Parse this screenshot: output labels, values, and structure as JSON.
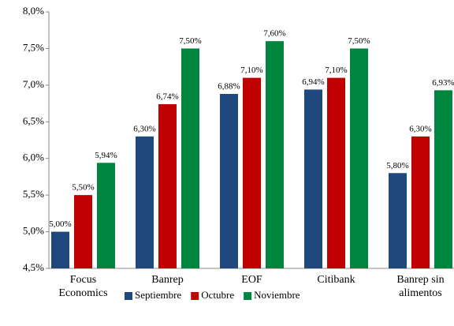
{
  "chart_data": {
    "type": "bar",
    "categories": [
      "Focus\nEconomics",
      "Banrep",
      "EOF",
      "Citibank",
      "Banrep sin\nalimentos"
    ],
    "series": [
      {
        "name": "Septiembre",
        "color": "#1f497d",
        "values": [
          5.0,
          6.3,
          6.88,
          6.94,
          5.8
        ],
        "value_labels": [
          "5,00%",
          "6,30%",
          "6,88%",
          "6,94%",
          "5,80%"
        ]
      },
      {
        "name": "Octubre",
        "color": "#c00000",
        "values": [
          5.5,
          6.74,
          7.1,
          7.1,
          6.3
        ],
        "value_labels": [
          "5,50%",
          "6,74%",
          "7,10%",
          "7,10%",
          "6,30%"
        ]
      },
      {
        "name": "Noviembre",
        "color": "#00853e",
        "values": [
          5.94,
          7.5,
          7.6,
          7.5,
          6.93
        ],
        "value_labels": [
          "5,94%",
          "7,50%",
          "7,60%",
          "7,50%",
          "6,93%"
        ]
      }
    ],
    "ylim": [
      4.5,
      8.0
    ],
    "yticks": [
      {
        "value": 4.5,
        "label": "4,5%"
      },
      {
        "value": 5.0,
        "label": "5,0%"
      },
      {
        "value": 5.5,
        "label": "5,5%"
      },
      {
        "value": 6.0,
        "label": "6,0%"
      },
      {
        "value": 6.5,
        "label": "6,5%"
      },
      {
        "value": 7.0,
        "label": "7,0%"
      },
      {
        "value": 7.5,
        "label": "7,5%"
      },
      {
        "value": 8.0,
        "label": "8,0%"
      }
    ],
    "legend": "bottom"
  }
}
